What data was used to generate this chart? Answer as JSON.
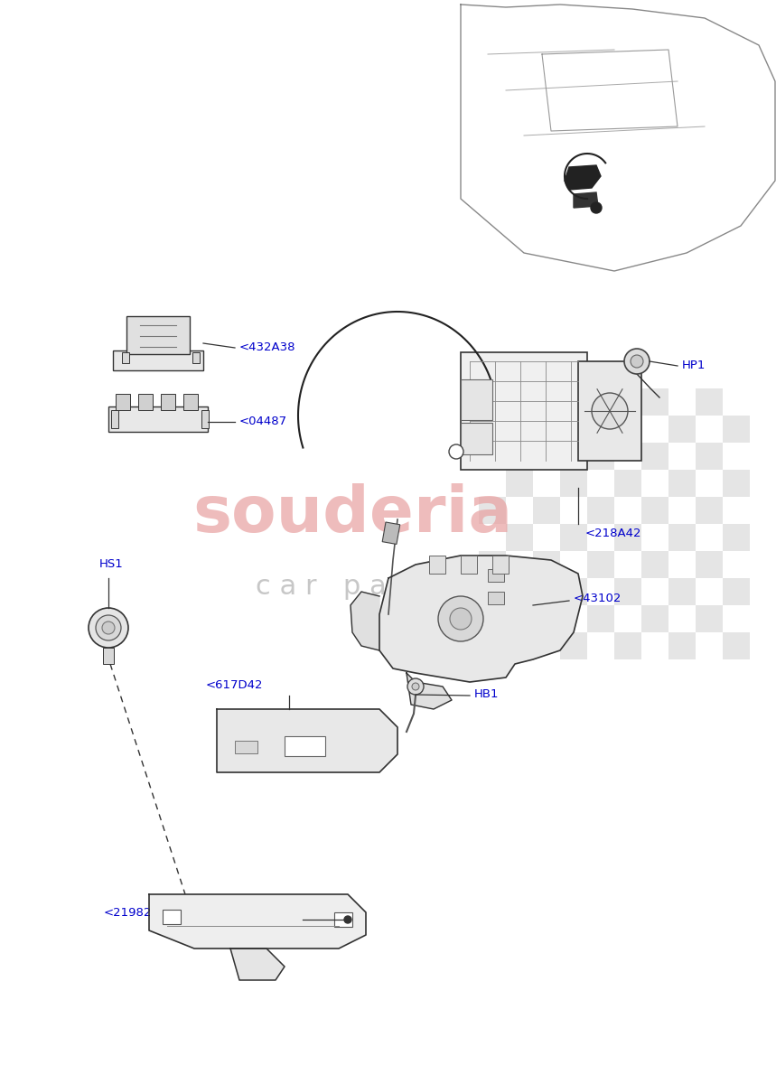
{
  "background_color": "#ffffff",
  "label_color": "#0000cc",
  "line_color": "#000000",
  "part_edge_color": "#333333",
  "watermark_color": "#e8a0a0",
  "watermark2_color": "#b0b0b0",
  "label_fs": 9.5,
  "parts": [
    {
      "id": "432A38",
      "label": "<432A38"
    },
    {
      "id": "04487",
      "label": "<04487"
    },
    {
      "id": "218A42",
      "label": "<218A42"
    },
    {
      "id": "43102",
      "label": "<43102"
    },
    {
      "id": "617D42",
      "label": "<617D42"
    },
    {
      "id": "21982",
      "label": "<21982"
    },
    {
      "id": "HP1",
      "label": "HP1"
    },
    {
      "id": "HB1",
      "label": "HB1"
    },
    {
      "id": "HS1",
      "label": "HS1"
    }
  ]
}
